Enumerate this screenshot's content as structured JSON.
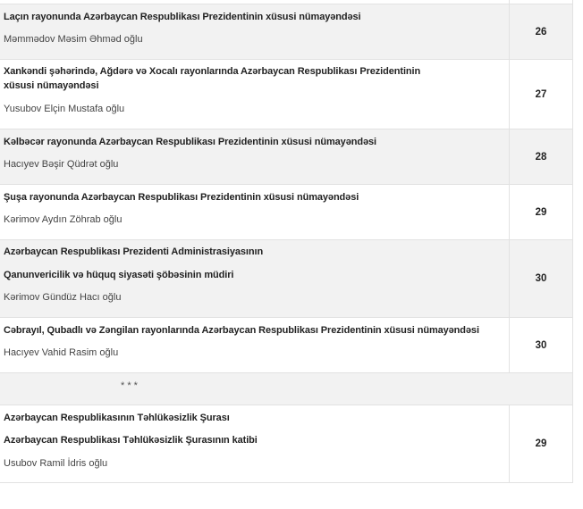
{
  "rows": [
    {
      "titles": [
        "Laçın rayonunda Azərbaycan Respublikası Prezidentinin xüsusi nümayəndəsi"
      ],
      "name": "Məmmədov Məsim Əhməd oğlu",
      "number": "26"
    },
    {
      "titles": [
        "Xankəndi şəhərində, Ağdərə və Xocalı rayonlarında Azərbaycan Respublikası Prezidentinin xüsusi nümayəndəsi"
      ],
      "name": "Yusubov Elçin Mustafa oğlu",
      "number": "27"
    },
    {
      "titles": [
        "Kəlbəcər rayonunda Azərbaycan Respublikası Prezidentinin xüsusi nümayəndəsi"
      ],
      "name": "Hacıyev Bəşir Qüdrət oğlu",
      "number": "28"
    },
    {
      "titles": [
        "Şuşa rayonunda Azərbaycan Respublikası Prezidentinin xüsusi nümayəndəsi"
      ],
      "name": "Kərimov Aydın Zöhrab oğlu",
      "number": "29"
    },
    {
      "titles": [
        "Azərbaycan Respublikası Prezidenti Administrasiyasının",
        "Qanunvericilik və hüquq siyasəti şöbəsinin müdiri"
      ],
      "name": "Kərimov Gündüz Hacı oğlu",
      "number": "30"
    },
    {
      "titles": [
        "Cəbrayıl, Qubadlı və Zəngilan rayonlarında Azərbaycan Respublikası Prezidentinin xüsusi nümayəndəsi"
      ],
      "name": "Hacıyev Vahid Rasim oğlu",
      "number": "30"
    },
    {
      "titles": [
        "Azərbaycan Respublikasının Təhlükəsizlik Şurası",
        "Azərbaycan Respublikası Təhlükəsizlik Şurasının katibi"
      ],
      "name": "Usubov Ramil İdris oğlu",
      "number": "29"
    }
  ],
  "separator": "* * *"
}
